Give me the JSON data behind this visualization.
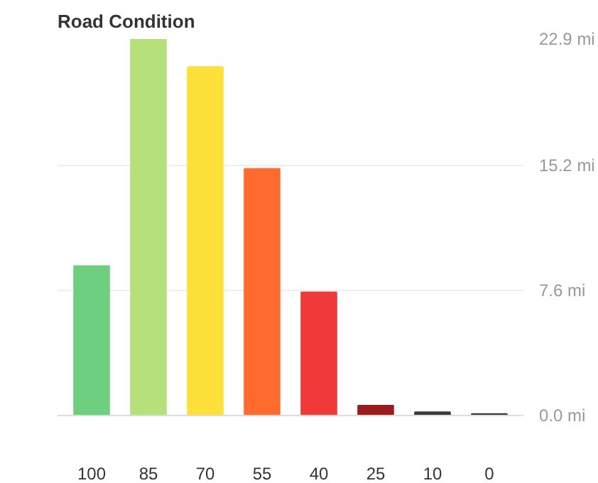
{
  "chart_data": {
    "type": "bar",
    "title": "Road Condition",
    "categories": [
      "100",
      "85",
      "70",
      "55",
      "40",
      "25",
      "10",
      "0"
    ],
    "values": [
      9.1,
      22.9,
      21.2,
      15.0,
      7.5,
      0.6,
      0.2,
      0.1
    ],
    "colors": [
      "#6dcf7f",
      "#b5e07a",
      "#fde03a",
      "#ff6b2d",
      "#f03a3a",
      "#9e1b1b",
      "#3a3a3a",
      "#3a3a3a"
    ],
    "ylim": [
      0,
      22.9
    ],
    "yticks": [
      {
        "value": 0,
        "label": "0.0 mi"
      },
      {
        "value": 7.6,
        "label": "7.6 mi"
      },
      {
        "value": 15.2,
        "label": "15.2 mi"
      },
      {
        "value": 22.9,
        "label": "22.9 mi"
      }
    ],
    "grid": "y"
  }
}
